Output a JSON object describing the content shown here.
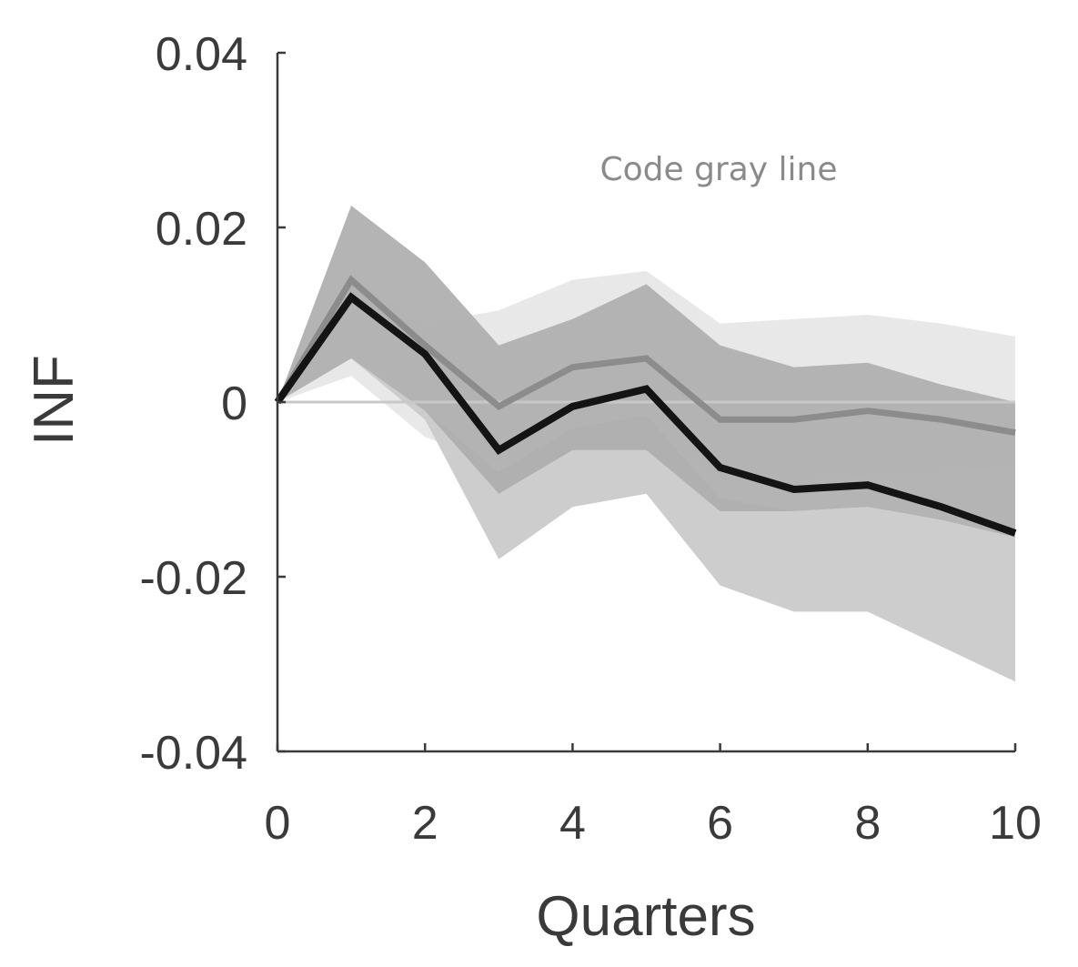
{
  "chart_data": {
    "type": "line",
    "title": "",
    "xlabel": "Quarters",
    "ylabel": "INF",
    "xlim": [
      0,
      10
    ],
    "ylim": [
      -0.04,
      0.04
    ],
    "x_ticks": [
      0,
      2,
      4,
      6,
      8,
      10
    ],
    "x_tick_labels": [
      "0",
      "2",
      "4",
      "6",
      "8",
      "10"
    ],
    "y_ticks": [
      0.04,
      0.02,
      0,
      -0.02,
      -0.04
    ],
    "y_tick_labels": [
      "0.04",
      "0.02",
      "0",
      "-0.02",
      "-0.04"
    ],
    "grid": false,
    "reference_line": {
      "y": 0,
      "color": "#c8c8c8"
    },
    "annotation": {
      "text": "Code gray line",
      "color": "#8a8a8a"
    },
    "x": [
      0,
      1,
      2,
      3,
      4,
      5,
      6,
      7,
      8,
      9,
      10
    ],
    "bands": [
      {
        "color": "#e6e6e6",
        "upper": [
          0,
          0.014,
          0.009,
          0.0105,
          0.014,
          0.015,
          0.009,
          0.0095,
          0.01,
          0.009,
          0.0075
        ],
        "lower": [
          0,
          0.003,
          -0.004,
          -0.007,
          -0.005,
          -0.003,
          -0.009,
          -0.009,
          -0.0085,
          -0.008,
          -0.0075
        ]
      },
      {
        "color": "#c9c9c9",
        "upper": [
          0,
          0.005,
          -0.001,
          -0.008,
          -0.003,
          -0.0015,
          -0.011,
          -0.0125,
          -0.012,
          -0.0135,
          -0.0155
        ],
        "lower": [
          0,
          0.005,
          -0.002,
          -0.018,
          -0.012,
          -0.0105,
          -0.021,
          -0.024,
          -0.024,
          -0.028,
          -0.032
        ]
      },
      {
        "color": "#aeaeae",
        "upper": [
          0,
          0.0225,
          0.016,
          0.0065,
          0.0095,
          0.0135,
          0.0065,
          0.004,
          0.0045,
          0.002,
          0
        ],
        "lower": [
          0,
          0.005,
          -0.001,
          -0.0105,
          -0.0055,
          -0.0055,
          -0.0125,
          -0.0125,
          -0.012,
          -0.0135,
          -0.0155
        ]
      }
    ],
    "series": [
      {
        "color": "#8c8c8c",
        "width": 7,
        "values": [
          0,
          0.014,
          0.0065,
          -0.0005,
          0.004,
          0.005,
          -0.002,
          -0.002,
          -0.001,
          -0.002,
          -0.0035
        ]
      },
      {
        "color": "#141414",
        "width": 8,
        "values": [
          0,
          0.012,
          0.0055,
          -0.0055,
          -0.0005,
          0.0015,
          -0.0075,
          -0.01,
          -0.0095,
          -0.012,
          -0.015
        ]
      }
    ]
  }
}
